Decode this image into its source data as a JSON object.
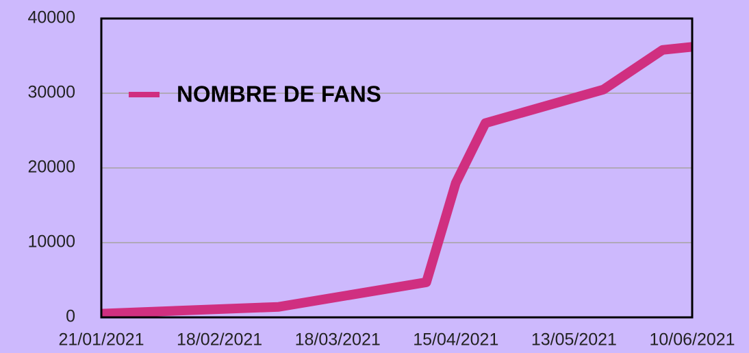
{
  "chart_data": {
    "type": "line",
    "x": [
      "21/01/2021",
      "04/03/2021",
      "08/04/2021",
      "15/04/2021",
      "22/04/2021",
      "20/05/2021",
      "03/06/2021",
      "10/06/2021"
    ],
    "series": [
      {
        "name": "NOMBRE DE FANS",
        "color": "#d02f80",
        "values": [
          500,
          1400,
          4700,
          18000,
          26000,
          30500,
          35800,
          36200
        ]
      }
    ],
    "xlim": [
      "21/01/2021",
      "10/06/2021"
    ],
    "xticks": [
      "21/01/2021",
      "18/02/2021",
      "18/03/2021",
      "15/04/2021",
      "13/05/2021",
      "10/06/2021"
    ],
    "ylim": [
      0,
      40000
    ],
    "yticks": [
      0,
      10000,
      20000,
      30000,
      40000
    ],
    "grid": true,
    "legend": "upper left"
  }
}
